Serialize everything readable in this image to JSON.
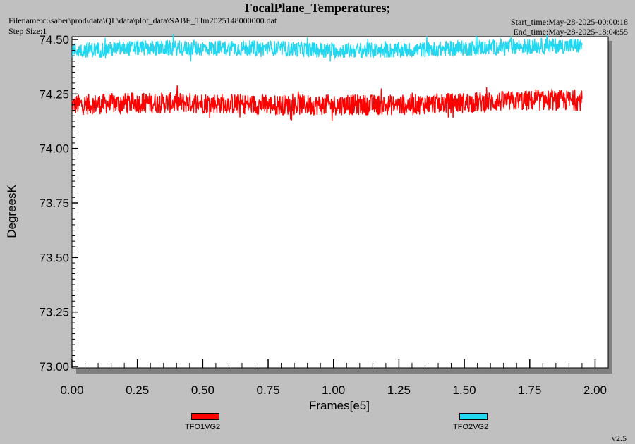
{
  "header": {
    "title": "FocalPlane_Temperatures;",
    "filename": "Filename:c:\\saber\\prod\\data\\QL\\data\\plot_data\\SABE_Tlm2025148000000.dat",
    "step_size": "Step Size:1",
    "start_time": "Start_time:May-28-2025-00:00:18",
    "end_time": "End_time:May-28-2025-18:04:55"
  },
  "footer": {
    "version": "v2.5"
  },
  "chart_data": {
    "type": "line",
    "title": "FocalPlane_Temperatures;",
    "xlabel": "Frames[e5]",
    "ylabel": "DegreesK",
    "xlim": [
      0,
      2.05
    ],
    "ylim": [
      73.0,
      74.5
    ],
    "x_ticks": [
      "0.00",
      "0.25",
      "0.50",
      "0.75",
      "1.00",
      "1.25",
      "1.50",
      "1.75",
      "2.00"
    ],
    "y_ticks": [
      "73.00",
      "73.25",
      "73.50",
      "73.75",
      "74.00",
      "74.25",
      "74.50"
    ],
    "grid": false,
    "legend_position": "bottom",
    "series": [
      {
        "name": "TFO1VG2",
        "color": "#ff0000",
        "x": [
          0.0,
          0.25,
          0.5,
          0.75,
          1.0,
          1.25,
          1.5,
          1.75,
          1.95
        ],
        "values": [
          74.2,
          74.21,
          74.21,
          74.2,
          74.2,
          74.2,
          74.21,
          74.22,
          74.22
        ],
        "range": [
          74.15,
          74.27
        ]
      },
      {
        "name": "TFO2VG2",
        "color": "#22d8f0",
        "x": [
          0.0,
          0.25,
          0.5,
          0.75,
          1.0,
          1.25,
          1.5,
          1.75,
          1.95
        ],
        "values": [
          74.45,
          74.46,
          74.46,
          74.46,
          74.45,
          74.45,
          74.46,
          74.47,
          74.47
        ],
        "range": [
          74.41,
          74.5
        ]
      }
    ]
  }
}
